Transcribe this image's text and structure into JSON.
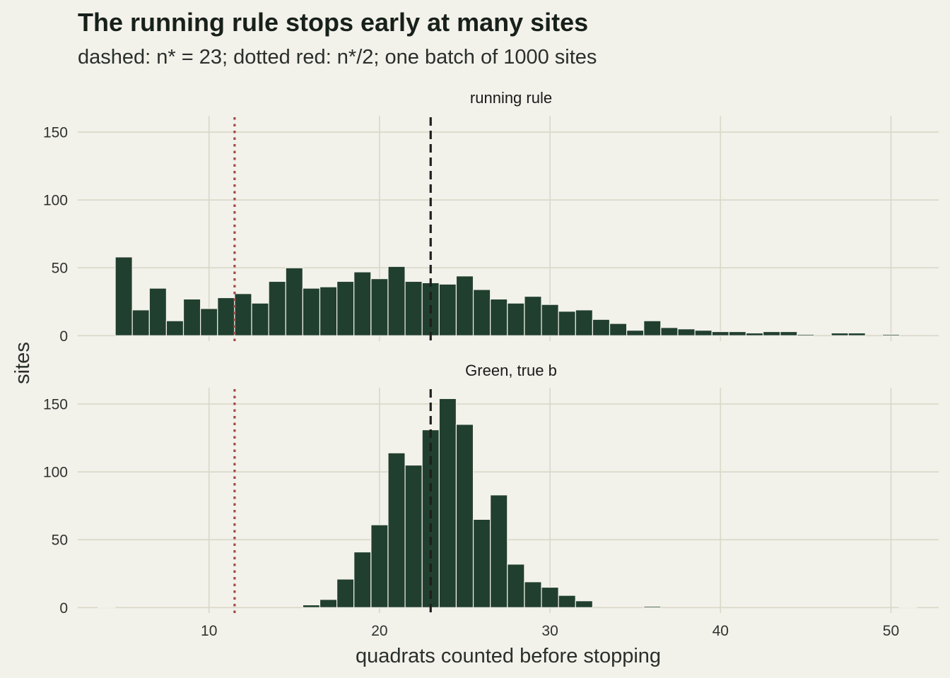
{
  "chart_data": {
    "type": "bar",
    "title": "The running rule stops early at many sites",
    "subtitle": "dashed: n* = 23; dotted red: n*/2; one batch of 1000 sites",
    "xlabel": "quadrats counted before stopping",
    "ylabel": "sites",
    "xlim": [
      2.3,
      52.8
    ],
    "ylim": [
      -4,
      162
    ],
    "x_ticks": [
      10,
      20,
      30,
      40,
      50
    ],
    "y_ticks": [
      0,
      50,
      100,
      150
    ],
    "bin_width": 1,
    "reference_lines": [
      {
        "x": 23,
        "style": "dashed",
        "color": "#1F1F1F"
      },
      {
        "x": 11.5,
        "style": "dotted",
        "color": "#A24A44"
      }
    ],
    "panels": [
      {
        "label": "running rule",
        "bins": [
          {
            "x": 5,
            "count": 58
          },
          {
            "x": 6,
            "count": 19
          },
          {
            "x": 7,
            "count": 35
          },
          {
            "x": 8,
            "count": 11
          },
          {
            "x": 9,
            "count": 27
          },
          {
            "x": 10,
            "count": 20
          },
          {
            "x": 11,
            "count": 28
          },
          {
            "x": 12,
            "count": 31
          },
          {
            "x": 13,
            "count": 24
          },
          {
            "x": 14,
            "count": 40
          },
          {
            "x": 15,
            "count": 50
          },
          {
            "x": 16,
            "count": 35
          },
          {
            "x": 17,
            "count": 36
          },
          {
            "x": 18,
            "count": 40
          },
          {
            "x": 19,
            "count": 47
          },
          {
            "x": 20,
            "count": 42
          },
          {
            "x": 21,
            "count": 51
          },
          {
            "x": 22,
            "count": 40
          },
          {
            "x": 23,
            "count": 39
          },
          {
            "x": 24,
            "count": 38
          },
          {
            "x": 25,
            "count": 44
          },
          {
            "x": 26,
            "count": 34
          },
          {
            "x": 27,
            "count": 27
          },
          {
            "x": 28,
            "count": 24
          },
          {
            "x": 29,
            "count": 29
          },
          {
            "x": 30,
            "count": 23
          },
          {
            "x": 31,
            "count": 18
          },
          {
            "x": 32,
            "count": 19
          },
          {
            "x": 33,
            "count": 12
          },
          {
            "x": 34,
            "count": 9
          },
          {
            "x": 35,
            "count": 4
          },
          {
            "x": 36,
            "count": 11
          },
          {
            "x": 37,
            "count": 6
          },
          {
            "x": 38,
            "count": 5
          },
          {
            "x": 39,
            "count": 4
          },
          {
            "x": 40,
            "count": 3
          },
          {
            "x": 41,
            "count": 3
          },
          {
            "x": 42,
            "count": 2
          },
          {
            "x": 43,
            "count": 3
          },
          {
            "x": 44,
            "count": 3
          },
          {
            "x": 45,
            "count": 1
          },
          {
            "x": 47,
            "count": 2
          },
          {
            "x": 48,
            "count": 2
          },
          {
            "x": 50,
            "count": 1
          }
        ]
      },
      {
        "label": "Green, true b",
        "bins": [
          {
            "x": 4,
            "count": 0
          },
          {
            "x": 16,
            "count": 2
          },
          {
            "x": 17,
            "count": 6
          },
          {
            "x": 18,
            "count": 21
          },
          {
            "x": 19,
            "count": 41
          },
          {
            "x": 20,
            "count": 61
          },
          {
            "x": 21,
            "count": 114
          },
          {
            "x": 22,
            "count": 105
          },
          {
            "x": 23,
            "count": 131
          },
          {
            "x": 24,
            "count": 154
          },
          {
            "x": 25,
            "count": 135
          },
          {
            "x": 26,
            "count": 65
          },
          {
            "x": 27,
            "count": 83
          },
          {
            "x": 28,
            "count": 32
          },
          {
            "x": 29,
            "count": 19
          },
          {
            "x": 30,
            "count": 15
          },
          {
            "x": 31,
            "count": 9
          },
          {
            "x": 32,
            "count": 5
          },
          {
            "x": 36,
            "count": 1
          },
          {
            "x": 51,
            "count": 0
          }
        ]
      }
    ],
    "bar_color": "#213F2E",
    "background": "#F2F1EA",
    "grid": true
  }
}
